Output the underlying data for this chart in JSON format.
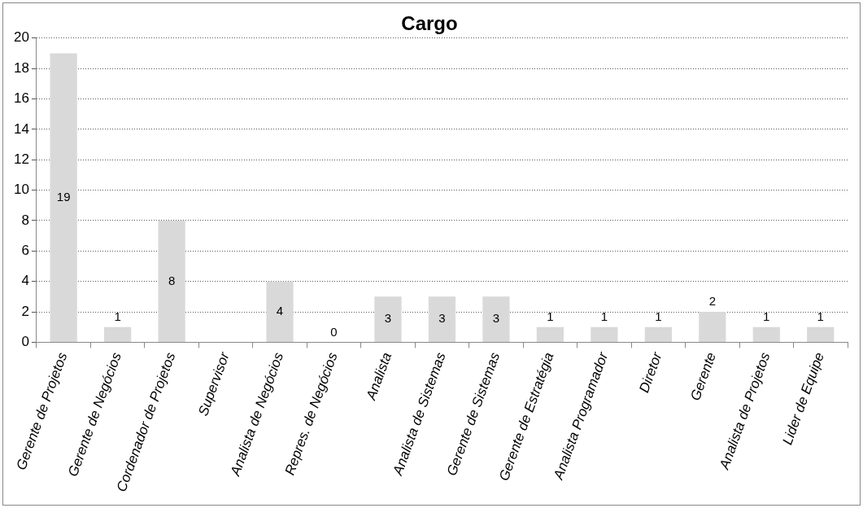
{
  "chart_data": {
    "type": "bar",
    "title": "Cargo",
    "categories": [
      "Gerente de Projetos",
      "Gerente de Negócios",
      "Cordenador de Projetos",
      "Supervisor",
      "Analista de Negócios",
      "Repres. de Negócios",
      "Analista",
      "Analista de Sistemas",
      "Gerente de Sistemas",
      "Gerente de Estratégia",
      "Analista Programador",
      "Diretor",
      "Gerente",
      "Analista de Projetos",
      "Lider de Equipe"
    ],
    "values": [
      19,
      1,
      8,
      null,
      4,
      0,
      3,
      3,
      3,
      1,
      1,
      1,
      2,
      1,
      1
    ],
    "color": "#d9d9d9",
    "ylim": [
      0,
      20
    ],
    "yticks": [
      0,
      2,
      4,
      6,
      8,
      10,
      12,
      14,
      16,
      18,
      20
    ],
    "grid": "y",
    "data_labels": true
  }
}
